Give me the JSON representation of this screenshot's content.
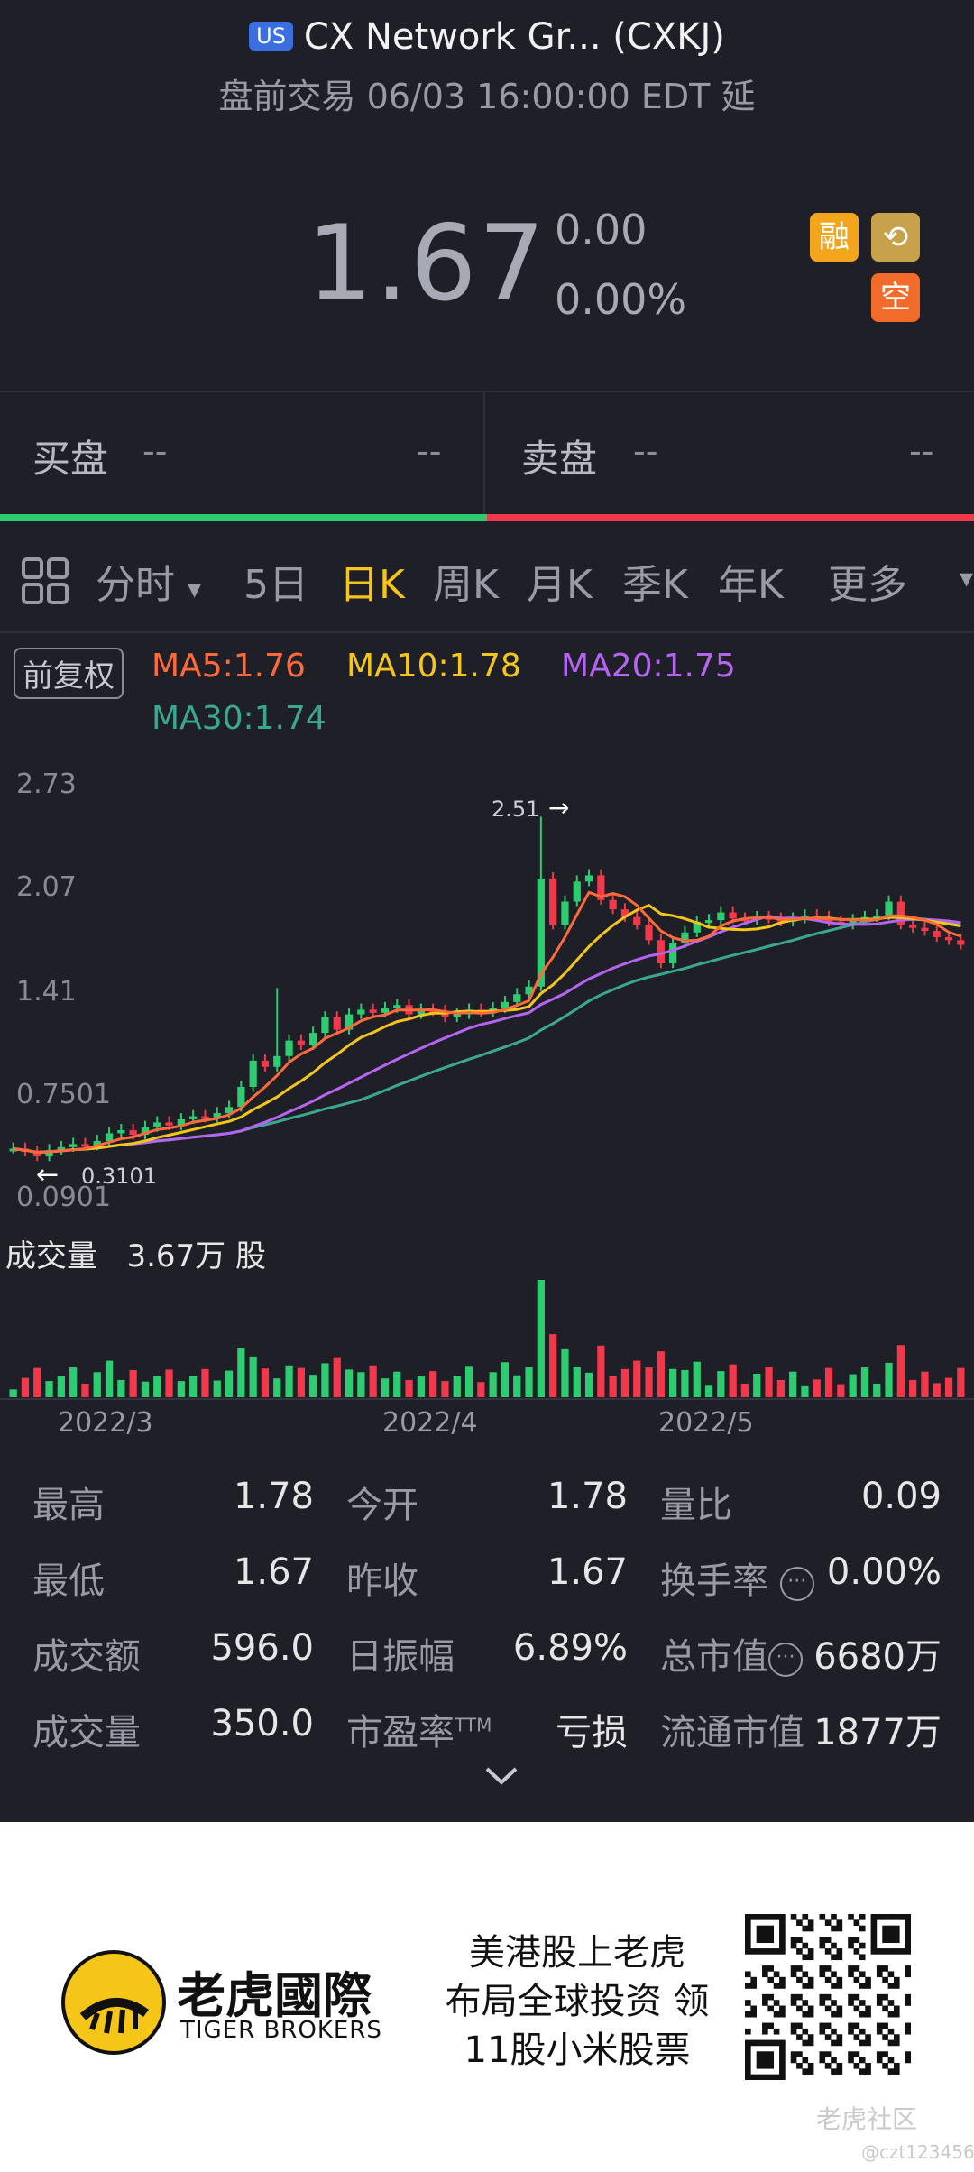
{
  "header": {
    "market_badge": "US",
    "title": "CX Network Gr... (CXKJ)",
    "subtitle": "盘前交易 06/03 16:00:00 EDT 延"
  },
  "quote": {
    "price": "1.67",
    "change": "0.00",
    "change_pct": "0.00%",
    "tags": {
      "margin": "融",
      "history": "⟲",
      "short": "空"
    }
  },
  "order_book": {
    "bid_label": "买盘",
    "bid_left": "--",
    "bid_right": "--",
    "ask_label": "卖盘",
    "ask_left": "--",
    "ask_right": "--"
  },
  "tabs": {
    "grid_icon": "grid-icon",
    "intraday": "分时",
    "dropdown": "▾",
    "five_day": "5日",
    "daily": "日K",
    "weekly": "周K",
    "monthly": "月K",
    "quarterly": "季K",
    "yearly": "年K",
    "more": "更多",
    "more_arrow": "▾"
  },
  "indicators": {
    "adjust": "前复权",
    "ma5": "MA5:1.76",
    "ma10": "MA10:1.78",
    "ma20": "MA20:1.75",
    "ma30": "MA30:1.74",
    "colors": {
      "ma5": "#ff6a3d",
      "ma10": "#f4c51b",
      "ma20": "#b565f2",
      "ma30": "#3aa890"
    }
  },
  "chart_data": {
    "type": "candlestick",
    "y_axis_ticks": [
      "2.73",
      "2.07",
      "1.41",
      "0.7501",
      "0.0901"
    ],
    "ylim": [
      0.0901,
      2.73
    ],
    "high_marker": "2.51",
    "low_marker": "0.3101",
    "x_tick_labels": [
      "2022/3",
      "2022/4",
      "2022/5"
    ],
    "volume_label": "成交量",
    "volume_value": "3.67万 股",
    "up_color": "#2ecc71",
    "down_color": "#f2384b"
  },
  "stats": {
    "high_label": "最高",
    "high": "1.78",
    "open_label": "今开",
    "open": "1.78",
    "vol_ratio_label": "量比",
    "vol_ratio": "0.09",
    "low_label": "最低",
    "low": "1.67",
    "prev_close_label": "昨收",
    "prev_close": "1.67",
    "turnover_label": "换手率",
    "turnover": "0.00%",
    "amount_label": "成交额",
    "amount": "596.0",
    "amplitude_label": "日振幅",
    "amplitude": "6.89%",
    "mkt_cap_label": "总市值",
    "mkt_cap": "6680万",
    "volume_label": "成交量",
    "volume": "350.0",
    "pe_label": "市盈率",
    "pe_sup": "TTM",
    "pe": "亏损",
    "float_cap_label": "流通市值",
    "float_cap": "1877万",
    "expand_icon": "chevron-down-icon"
  },
  "footer": {
    "brand_cn": "老虎國際",
    "brand_en": "TIGER BROKERS",
    "promo_line1": "美港股上老虎",
    "promo_line2": "布局全球投资 领",
    "promo_line3": "11股小米股票",
    "watermark": "老虎社区",
    "watermark_user": "@czt123456"
  }
}
